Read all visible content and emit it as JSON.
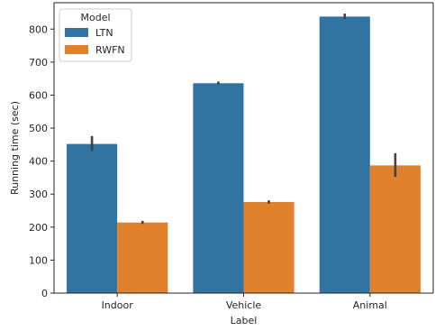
{
  "chart_data": {
    "type": "bar",
    "xlabel": "Label",
    "ylabel": "Running time (sec)",
    "categories": [
      "Indoor",
      "Vehicle",
      "Animal"
    ],
    "series": [
      {
        "name": "LTN",
        "color": "#3274a1",
        "values": [
          452,
          636,
          838
        ],
        "error_low": [
          430,
          632,
          830
        ],
        "error_high": [
          476,
          641,
          847
        ]
      },
      {
        "name": "RWFN",
        "color": "#e1812c",
        "values": [
          214,
          276,
          387
        ],
        "error_low": [
          210,
          271,
          352
        ],
        "error_high": [
          219,
          281,
          424
        ]
      }
    ],
    "ylim": [
      0,
      880
    ],
    "yticks": [
      0,
      100,
      200,
      300,
      400,
      500,
      600,
      700,
      800
    ],
    "grid": false,
    "legend": {
      "title": "Model",
      "placement": "top-left"
    },
    "error_bar_color": "#424242"
  }
}
